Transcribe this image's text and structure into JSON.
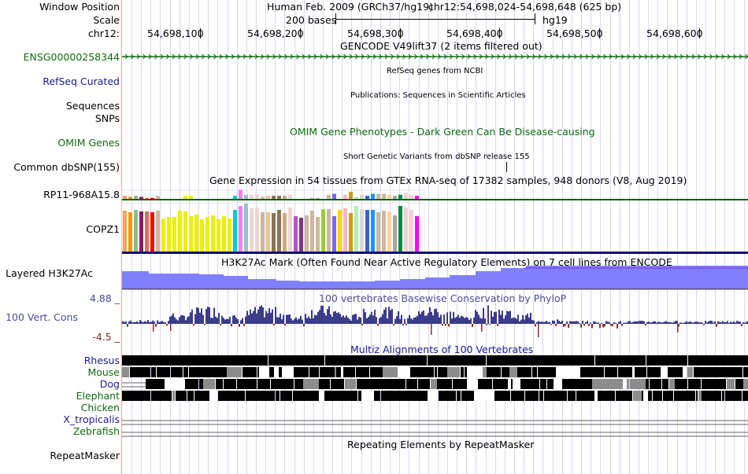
{
  "header": {
    "window_position_label": "Window Position",
    "assembly": "Human Feb. 2009 (GRCh37/hg19)",
    "position": "chr12:54,698,024-54,698,648 (625 bp)",
    "scale_label": "Scale",
    "scale_text": "200 bases",
    "scale_db": "hg19",
    "chrom_label": "chr12:",
    "ticks": [
      "54,698,100",
      "54,698,200",
      "54,698,300",
      "54,698,400",
      "54,698,500",
      "54,698,600"
    ]
  },
  "tracks": {
    "gencode": {
      "title": "GENCODE V49lift37 (2 items filtered out)",
      "label": "ENSG00000258344",
      "strand": "+",
      "color": "#0e6a0e"
    },
    "refseq": {
      "label": "RefSeq Curated",
      "title": "RefSeq genes from NCBI"
    },
    "publications": {
      "label": "Sequences",
      "title": "Publications: Sequences in Scientific Articles"
    },
    "snps_label": "SNPs",
    "omim": {
      "label": "OMIM Genes",
      "title": "OMIM Gene Phenotypes - Dark Green Can Be Disease-causing"
    },
    "dbsnp": {
      "label": "Common dbSNP(155)",
      "title": "Short Genetic Variants from dbSNP release 155"
    },
    "gtex": {
      "title": "Gene Expression in 54 tissues from GTEx RNA-seq of 17382 samples, 948 donors (V8, Aug 2019)",
      "genes": [
        {
          "label": "RP11-968A15.8",
          "line_color": "#0b5f0b",
          "values": [
            3,
            2,
            3,
            2,
            1,
            1,
            3,
            0,
            0,
            0,
            0,
            3,
            3,
            0,
            0,
            0,
            0,
            0,
            0,
            0,
            3,
            9,
            4,
            4,
            5,
            2,
            3,
            3,
            3,
            3,
            4,
            0,
            0,
            0,
            1,
            1,
            0,
            4,
            5,
            0,
            4,
            7,
            2,
            4,
            3,
            5,
            5,
            5,
            4,
            3,
            4,
            6,
            4,
            3
          ]
        },
        {
          "label": "COPZ1",
          "line_color": "#101070",
          "values": [
            53,
            51,
            54,
            52,
            52,
            51,
            53,
            43,
            45,
            45,
            53,
            52,
            46,
            48,
            42,
            45,
            47,
            42,
            46,
            43,
            54,
            59,
            62,
            56,
            57,
            51,
            51,
            50,
            54,
            50,
            57,
            46,
            44,
            47,
            53,
            45,
            55,
            55,
            46,
            54,
            56,
            50,
            59,
            55,
            54,
            54,
            51,
            53,
            52,
            47,
            59,
            57,
            54,
            46
          ]
        }
      ],
      "tissue_colors": [
        "#f4a460",
        "#ee9a00",
        "#8fbc8f",
        "#8b1c62",
        "#ee6a50",
        "#ff0000",
        "#cdb79e",
        "#eeee00",
        "#eeee00",
        "#eeee00",
        "#eeee00",
        "#eeee00",
        "#eeee00",
        "#eeee00",
        "#eeee00",
        "#eeee00",
        "#eeee00",
        "#eeee00",
        "#eeee00",
        "#eeee00",
        "#00cdcd",
        "#ee82ee",
        "#9ac0cd",
        "#eed5d2",
        "#eed5d2",
        "#cdb79e",
        "#eec591",
        "#8b7355",
        "#8b7355",
        "#cdaa7d",
        "#eed5d2",
        "#b452cd",
        "#7a378b",
        "#cdb79e",
        "#cdb79e",
        "#cdb79e",
        "#9acd32",
        "#cdb79e",
        "#7b68ee",
        "#ffd700",
        "#ffb6c1",
        "#cd9b1d",
        "#b4eeb4",
        "#d9d9d9",
        "#3a5fcd",
        "#1e90ff",
        "#cdb79e",
        "#cdb79e",
        "#ffd39b",
        "#a6a6a6",
        "#008b45",
        "#eed5d2",
        "#eed5d2",
        "#ff00ff"
      ]
    },
    "h3k27ac": {
      "label": "Layered H3K27Ac",
      "title": "H3K27Ac Mark (Often Found Near Active Regulatory Elements) on 7 cell lines from ENCODE",
      "fill_color": "#8080ff"
    },
    "cons": {
      "label": "100 Vert. Cons",
      "title": "100 vertebrates Basewise Conservation by PhyloP",
      "max_label": "4.88 _",
      "min_label": "-4.5 _",
      "pos_color": "#3c3c8c",
      "neg_color": "#8b2c2c"
    },
    "multiz": {
      "title": "Multiz Alignments of 100 Vertebrates",
      "species": [
        {
          "name": "Rhesus",
          "color": "navy"
        },
        {
          "name": "Mouse",
          "color": "green"
        },
        {
          "name": "Dog",
          "color": "navy"
        },
        {
          "name": "Elephant",
          "color": "green"
        },
        {
          "name": "Chicken",
          "color": "green"
        },
        {
          "name": "X_tropicalis",
          "color": "navy"
        },
        {
          "name": "Zebrafish",
          "color": "green"
        }
      ]
    },
    "repeatmasker": {
      "label": "RepeatMasker",
      "title": "Repeating Elements by RepeatMasker"
    }
  }
}
